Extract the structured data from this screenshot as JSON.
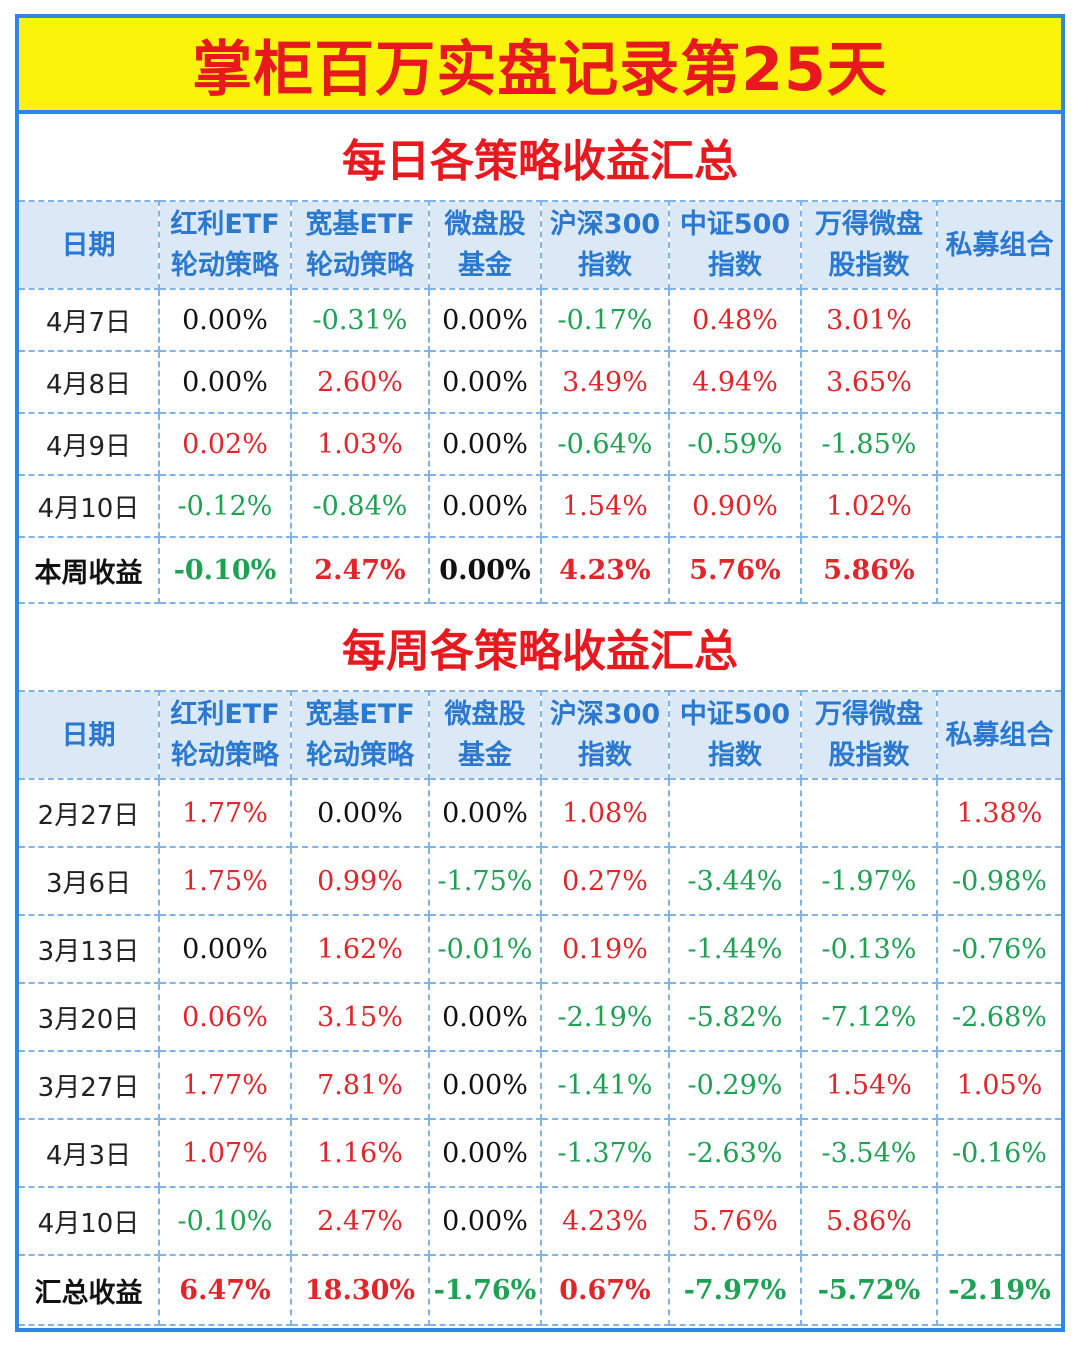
{
  "title": "掌柜百万实盘记录第25天",
  "daily": {
    "title": "每日各策略收益汇总",
    "headers": [
      [
        "日期"
      ],
      [
        "红利ETF",
        "轮动策略"
      ],
      [
        "宽基ETF",
        "轮动策略"
      ],
      [
        "微盘股",
        "基金"
      ],
      [
        "沪深300",
        "指数"
      ],
      [
        "中证500",
        "指数"
      ],
      [
        "万得微盘",
        "股指数"
      ],
      [
        "私募组合"
      ]
    ],
    "rows": [
      {
        "date": "4月7日",
        "values": [
          "0.00%",
          "-0.31%",
          "0.00%",
          "-0.17%",
          "0.48%",
          "3.01%",
          ""
        ]
      },
      {
        "date": "4月8日",
        "values": [
          "0.00%",
          "2.60%",
          "0.00%",
          "3.49%",
          "4.94%",
          "3.65%",
          ""
        ]
      },
      {
        "date": "4月9日",
        "values": [
          "0.02%",
          "1.03%",
          "0.00%",
          "-0.64%",
          "-0.59%",
          "-1.85%",
          ""
        ]
      },
      {
        "date": "4月10日",
        "values": [
          "-0.12%",
          "-0.84%",
          "0.00%",
          "1.54%",
          "0.90%",
          "1.02%",
          ""
        ]
      }
    ],
    "summary": {
      "label": "本周收益",
      "values": [
        "-0.10%",
        "2.47%",
        "0.00%",
        "4.23%",
        "5.76%",
        "5.86%",
        ""
      ]
    }
  },
  "weekly": {
    "title": "每周各策略收益汇总",
    "headers": [
      [
        "日期"
      ],
      [
        "红利ETF",
        "轮动策略"
      ],
      [
        "宽基ETF",
        "轮动策略"
      ],
      [
        "微盘股",
        "基金"
      ],
      [
        "沪深300",
        "指数"
      ],
      [
        "中证500",
        "指数"
      ],
      [
        "万得微盘",
        "股指数"
      ],
      [
        "私募组合"
      ]
    ],
    "rows": [
      {
        "date": "2月27日",
        "values": [
          "1.77%",
          "0.00%",
          "0.00%",
          "1.08%",
          "",
          "",
          "1.38%"
        ]
      },
      {
        "date": "3月6日",
        "values": [
          "1.75%",
          "0.99%",
          "-1.75%",
          "0.27%",
          "-3.44%",
          "-1.97%",
          "-0.98%"
        ]
      },
      {
        "date": "3月13日",
        "values": [
          "0.00%",
          "1.62%",
          "-0.01%",
          "0.19%",
          "-1.44%",
          "-0.13%",
          "-0.76%"
        ]
      },
      {
        "date": "3月20日",
        "values": [
          "0.06%",
          "3.15%",
          "0.00%",
          "-2.19%",
          "-5.82%",
          "-7.12%",
          "-2.68%"
        ]
      },
      {
        "date": "3月27日",
        "values": [
          "1.77%",
          "7.81%",
          "0.00%",
          "-1.41%",
          "-0.29%",
          "1.54%",
          "1.05%"
        ]
      },
      {
        "date": "4月3日",
        "values": [
          "1.07%",
          "1.16%",
          "0.00%",
          "-1.37%",
          "-2.63%",
          "-3.54%",
          "-0.16%"
        ]
      },
      {
        "date": "4月10日",
        "values": [
          "-0.10%",
          "2.47%",
          "0.00%",
          "4.23%",
          "5.76%",
          "5.86%",
          ""
        ]
      }
    ],
    "summary": {
      "label": "汇总收益",
      "values": [
        "6.47%",
        "18.30%",
        "-1.76%",
        "0.67%",
        "-7.97%",
        "-5.72%",
        "-2.19%"
      ]
    }
  },
  "colors": {
    "positive": "#e0262a",
    "negative": "#1ea152",
    "zero": "#111111",
    "header_text": "#2b78d0",
    "header_bg": "#dbe9f7",
    "title_bg": "#fbf40a",
    "title_text": "#e8191e",
    "border": "#2e86e6"
  }
}
